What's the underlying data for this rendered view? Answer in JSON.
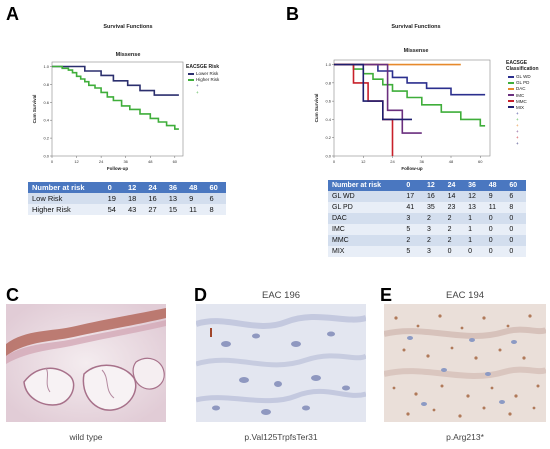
{
  "panels": {
    "A": {
      "letter": "A",
      "figure_title": "Survival Functions",
      "subtitle": "Missense",
      "legend_title": "EACSGE Risk",
      "legend_items": [
        "Lower Risk",
        "Higher Risk",
        "+",
        "+"
      ],
      "table": {
        "header": [
          "Number at risk",
          "0",
          "12",
          "24",
          "36",
          "48",
          "60"
        ],
        "rows": [
          [
            "Low Risk",
            "19",
            "18",
            "16",
            "13",
            "9",
            "6"
          ],
          [
            "Higher Risk",
            "54",
            "43",
            "27",
            "15",
            "11",
            "8"
          ]
        ]
      }
    },
    "B": {
      "letter": "B",
      "figure_title": "Survival Functions",
      "subtitle": "Missense",
      "legend_title": "EACSGE Classification",
      "legend_items": [
        "GL WD",
        "GL PD",
        "DAC",
        "IMC",
        "MMC",
        "MIX",
        "+",
        "+",
        "+",
        "+",
        "+",
        "+"
      ],
      "table": {
        "header": [
          "Number at risk",
          "0",
          "12",
          "24",
          "36",
          "48",
          "60"
        ],
        "rows": [
          [
            "GL WD",
            "17",
            "16",
            "14",
            "12",
            "9",
            "6"
          ],
          [
            "GL PD",
            "41",
            "35",
            "23",
            "13",
            "11",
            "8"
          ],
          [
            "DAC",
            "3",
            "2",
            "2",
            "1",
            "0",
            "0"
          ],
          [
            "IMC",
            "5",
            "3",
            "2",
            "1",
            "0",
            "0"
          ],
          [
            "MMC",
            "2",
            "2",
            "2",
            "1",
            "0",
            "0"
          ],
          [
            "MIX",
            "5",
            "3",
            "0",
            "0",
            "0",
            "0"
          ]
        ]
      }
    },
    "C": {
      "letter": "C",
      "caption": "wild type"
    },
    "D": {
      "letter": "D",
      "title": "EAC 196",
      "caption": "p.Val125TrpfsTer31"
    },
    "E": {
      "letter": "E",
      "title": "EAC 194",
      "caption": "p.Arg213*"
    }
  },
  "axis_labels": {
    "y": "Cum Survival",
    "x": "Follow-up"
  },
  "chart_data": [
    {
      "type": "line",
      "title": "Survival Functions",
      "subtitle": "Missense",
      "xlabel": "Follow-up",
      "ylabel": "Cum Survival",
      "xlim": [
        0,
        64
      ],
      "ylim": [
        0,
        1.05
      ],
      "xticks": [
        0,
        12,
        24,
        36,
        48,
        60
      ],
      "yticks": [
        0.0,
        0.2,
        0.4,
        0.6,
        0.8,
        1.0
      ],
      "series": [
        {
          "name": "Lower Risk",
          "color": "#2b2f6e",
          "x": [
            0,
            13,
            16,
            16,
            24,
            24,
            30,
            30,
            37,
            37,
            43,
            43,
            50,
            50,
            62
          ],
          "y": [
            1.0,
            1.0,
            1.0,
            0.95,
            0.95,
            0.9,
            0.9,
            0.84,
            0.84,
            0.79,
            0.79,
            0.73,
            0.73,
            0.68,
            0.68
          ]
        },
        {
          "name": "Higher Risk",
          "color": "#3fae3a",
          "x": [
            0,
            5,
            5,
            8,
            8,
            10,
            10,
            12,
            12,
            14,
            14,
            16,
            16,
            18,
            18,
            21,
            21,
            24,
            24,
            27,
            27,
            30,
            30,
            34,
            34,
            38,
            38,
            43,
            43,
            48,
            48,
            52,
            52,
            56,
            56,
            60,
            60,
            62
          ],
          "y": [
            1.0,
            1.0,
            0.98,
            0.98,
            0.96,
            0.96,
            0.93,
            0.93,
            0.89,
            0.89,
            0.86,
            0.86,
            0.83,
            0.83,
            0.79,
            0.79,
            0.76,
            0.76,
            0.71,
            0.71,
            0.66,
            0.66,
            0.62,
            0.62,
            0.56,
            0.56,
            0.52,
            0.52,
            0.47,
            0.47,
            0.42,
            0.42,
            0.38,
            0.38,
            0.34,
            0.34,
            0.3,
            0.3
          ]
        }
      ]
    },
    {
      "type": "line",
      "title": "Survival Functions",
      "subtitle": "Missense",
      "xlabel": "Follow-up",
      "ylabel": "Cum Survival",
      "xlim": [
        0,
        64
      ],
      "ylim": [
        0,
        1.05
      ],
      "xticks": [
        0,
        12,
        24,
        36,
        48,
        60
      ],
      "yticks": [
        0.0,
        0.2,
        0.4,
        0.6,
        0.8,
        1.0
      ],
      "series": [
        {
          "name": "GL WD",
          "color": "#2b2f8e",
          "x": [
            0,
            18,
            18,
            24,
            24,
            30,
            30,
            38,
            38,
            48,
            48,
            62
          ],
          "y": [
            1.0,
            1.0,
            0.93,
            0.93,
            0.86,
            0.86,
            0.8,
            0.8,
            0.74,
            0.74,
            0.67,
            0.67
          ]
        },
        {
          "name": "GL PD",
          "color": "#3fae3a",
          "x": [
            0,
            8,
            8,
            12,
            12,
            16,
            16,
            20,
            20,
            24,
            24,
            30,
            30,
            36,
            36,
            44,
            44,
            52,
            52,
            60,
            60,
            62
          ],
          "y": [
            1.0,
            1.0,
            0.95,
            0.95,
            0.9,
            0.9,
            0.84,
            0.84,
            0.78,
            0.78,
            0.71,
            0.71,
            0.64,
            0.64,
            0.56,
            0.56,
            0.48,
            0.48,
            0.4,
            0.4,
            0.33,
            0.33
          ]
        },
        {
          "name": "DAC",
          "color": "#e6892b",
          "x": [
            0,
            52
          ],
          "y": [
            1.0,
            1.0
          ]
        },
        {
          "name": "IMC",
          "color": "#6a2f7e",
          "x": [
            0,
            22,
            22,
            28,
            28,
            36
          ],
          "y": [
            1.0,
            1.0,
            0.5,
            0.5,
            0.25,
            0.25
          ]
        },
        {
          "name": "MMC",
          "color": "#c8202a",
          "x": [
            0,
            8,
            8,
            14,
            14,
            20,
            20,
            24,
            24
          ],
          "y": [
            1.0,
            1.0,
            0.8,
            0.8,
            0.6,
            0.6,
            0.4,
            0.4,
            0.0
          ]
        },
        {
          "name": "MIX",
          "color": "#1e1e6e",
          "x": [
            0,
            12,
            12,
            20,
            20,
            32
          ],
          "y": [
            1.0,
            1.0,
            0.6,
            0.6,
            0.4,
            0.4
          ]
        }
      ]
    }
  ]
}
